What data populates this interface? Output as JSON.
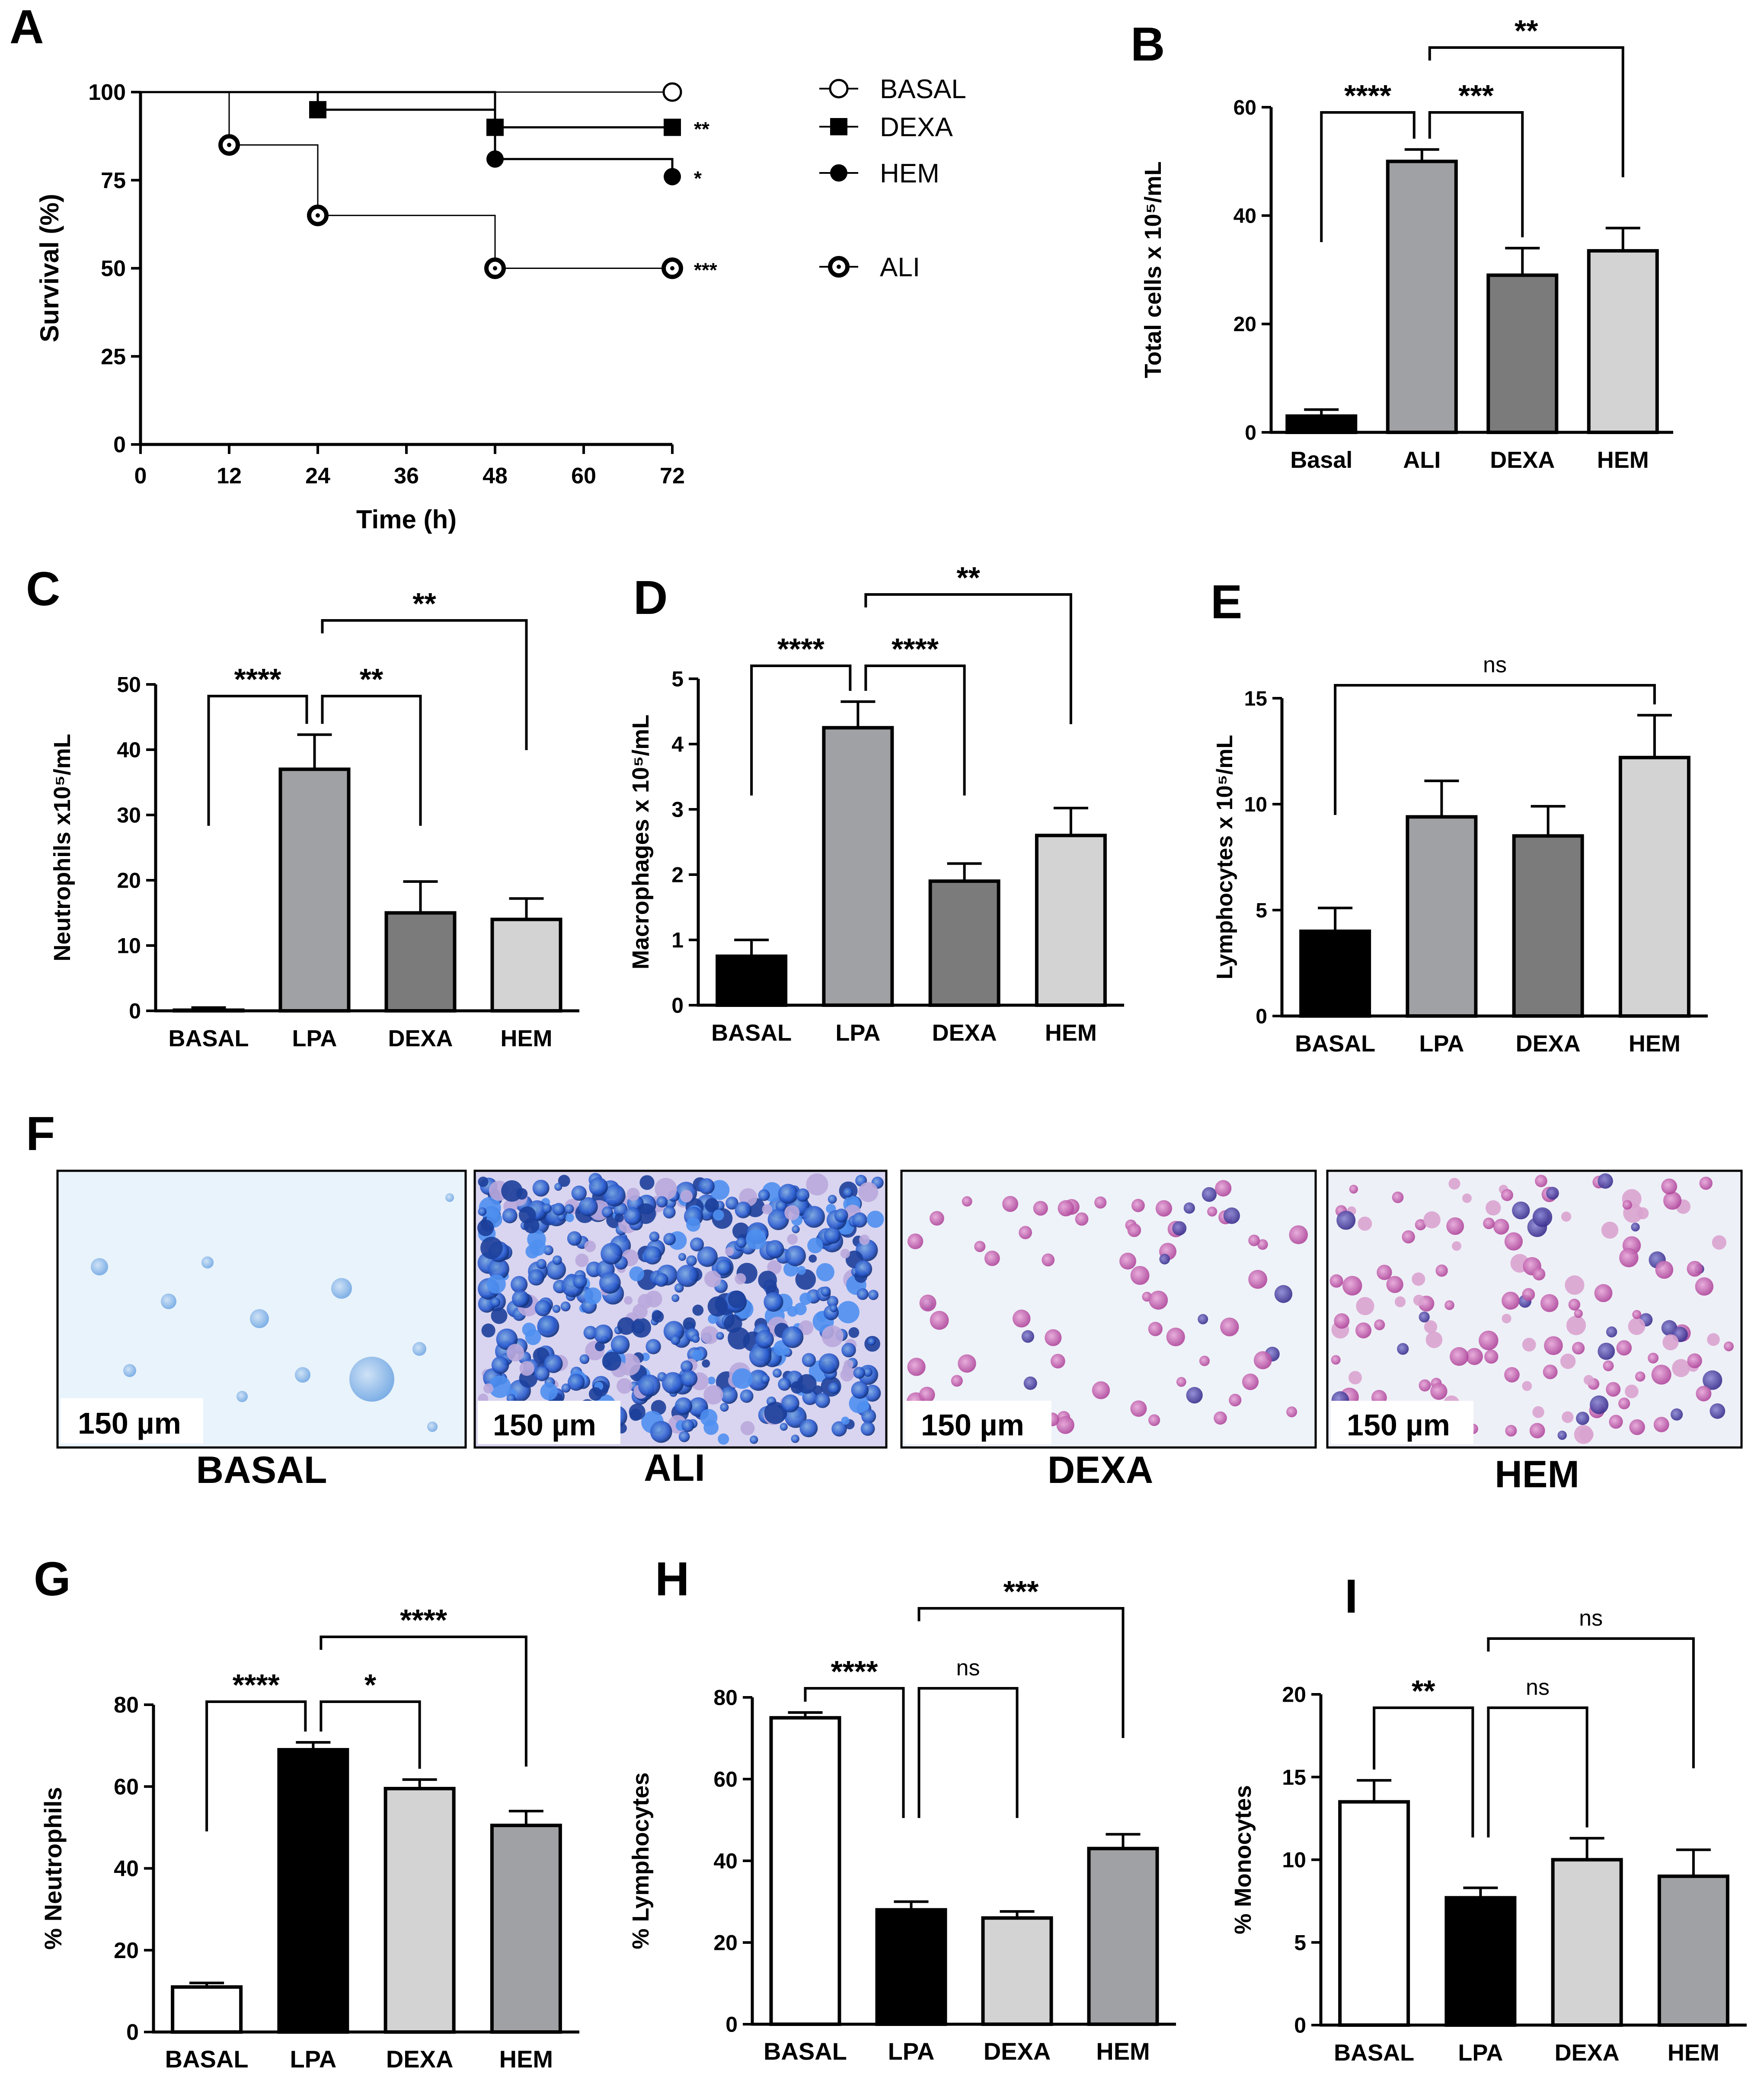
{
  "colors": {
    "black": "#000000",
    "gray_light": "#d3d3d3",
    "gray_mid": "#a0a1a4",
    "gray_dark": "#7b7b7b",
    "white": "#ffffff"
  },
  "chart_data": [
    {
      "id": "A",
      "type": "line",
      "panel_label": "A",
      "title": "",
      "xlabel": "Time (h)",
      "ylabel": "Survival (%)",
      "xlim": [
        0,
        72
      ],
      "ylim": [
        0,
        100
      ],
      "x_ticks": [
        "0",
        "12",
        "24",
        "36",
        "48",
        "60",
        "72"
      ],
      "y_ticks": [
        "0",
        "25",
        "50",
        "75",
        "100"
      ],
      "series": [
        {
          "name": "BASAL",
          "marker": "circle-open",
          "x": [
            0,
            72
          ],
          "y": [
            100,
            100
          ],
          "significance": ""
        },
        {
          "name": "DEXA",
          "marker": "square",
          "x": [
            0,
            24,
            48,
            72
          ],
          "y": [
            100,
            95,
            90,
            90
          ],
          "significance": "**"
        },
        {
          "name": "HEM",
          "marker": "circle-filled",
          "x": [
            0,
            48,
            72
          ],
          "y": [
            100,
            81,
            76
          ],
          "significance": "*"
        },
        {
          "name": "ALI",
          "marker": "circle-dot",
          "x": [
            0,
            12,
            24,
            48,
            72
          ],
          "y": [
            100,
            85,
            65,
            50,
            50
          ],
          "significance": "***"
        }
      ]
    },
    {
      "id": "B",
      "type": "bar",
      "panel_label": "B",
      "ylabel": "Total cells x 10⁵/mL",
      "ylim": [
        0,
        60
      ],
      "y_ticks": [
        "0",
        "20",
        "40",
        "60"
      ],
      "categories": [
        "Basal",
        "ALI",
        "DEXA",
        "HEM"
      ],
      "values": [
        3,
        50,
        29,
        33.5
      ],
      "errors": [
        1.2,
        2.2,
        5,
        4.2
      ],
      "fills": [
        "black",
        "gray_mid",
        "gray_dark",
        "gray_light"
      ],
      "brackets": [
        {
          "from": 0,
          "to": 1,
          "label": "****",
          "level": 1
        },
        {
          "from": 1,
          "to": 2,
          "label": "***",
          "level": 1
        },
        {
          "from": 1,
          "to": 3,
          "label": "**",
          "level": 2
        }
      ]
    },
    {
      "id": "C",
      "type": "bar",
      "panel_label": "C",
      "ylabel": "Neutrophils x10⁵/mL",
      "ylim": [
        0,
        50
      ],
      "y_ticks": [
        "0",
        "10",
        "20",
        "30",
        "40",
        "50"
      ],
      "categories": [
        "BASAL",
        "LPA",
        "DEXA",
        "HEM"
      ],
      "values": [
        0.1,
        37,
        15,
        14
      ],
      "errors": [
        0.4,
        5.3,
        4.8,
        3.2
      ],
      "fills": [
        "black",
        "gray_mid",
        "gray_dark",
        "gray_light"
      ],
      "brackets": [
        {
          "from": 0,
          "to": 1,
          "label": "****",
          "level": 1
        },
        {
          "from": 1,
          "to": 2,
          "label": "**",
          "level": 1
        },
        {
          "from": 1,
          "to": 3,
          "label": "**",
          "level": 2
        }
      ]
    },
    {
      "id": "D",
      "type": "bar",
      "panel_label": "D",
      "ylabel": "Macrophages x 10⁵/mL",
      "ylim": [
        0,
        5
      ],
      "y_ticks": [
        "0",
        "1",
        "2",
        "3",
        "4",
        "5"
      ],
      "categories": [
        "BASAL",
        "LPA",
        "DEXA",
        "HEM"
      ],
      "values": [
        0.75,
        4.25,
        1.9,
        2.6
      ],
      "errors": [
        0.25,
        0.4,
        0.27,
        0.42
      ],
      "fills": [
        "black",
        "gray_mid",
        "gray_dark",
        "gray_light"
      ],
      "brackets": [
        {
          "from": 0,
          "to": 1,
          "label": "****",
          "level": 1
        },
        {
          "from": 1,
          "to": 2,
          "label": "****",
          "level": 1
        },
        {
          "from": 1,
          "to": 3,
          "label": "**",
          "level": 2
        }
      ]
    },
    {
      "id": "E",
      "type": "bar",
      "panel_label": "E",
      "ylabel": "Lymphocytes x 10⁵/mL",
      "ylim": [
        0,
        15
      ],
      "y_ticks": [
        "0",
        "5",
        "10",
        "15"
      ],
      "categories": [
        "BASAL",
        "LPA",
        "DEXA",
        "HEM"
      ],
      "values": [
        4,
        9.4,
        8.5,
        12.2
      ],
      "errors": [
        1.1,
        1.7,
        1.4,
        2
      ],
      "fills": [
        "black",
        "gray_mid",
        "gray_dark",
        "gray_light"
      ],
      "brackets": [
        {
          "from": 0,
          "to": 3,
          "label": "ns",
          "level": 1
        }
      ]
    },
    {
      "id": "G",
      "type": "bar",
      "panel_label": "G",
      "ylabel": "% Neutrophils",
      "ylim": [
        0,
        80
      ],
      "y_ticks": [
        "0",
        "20",
        "40",
        "60",
        "80"
      ],
      "categories": [
        "BASAL",
        "LPA",
        "DEXA",
        "HEM"
      ],
      "values": [
        11,
        69,
        59.5,
        50.5
      ],
      "errors": [
        1,
        1.8,
        2.2,
        3.5
      ],
      "fills": [
        "white",
        "black",
        "gray_light",
        "gray_mid"
      ],
      "brackets": [
        {
          "from": 0,
          "to": 1,
          "label": "****",
          "level": 1
        },
        {
          "from": 1,
          "to": 2,
          "label": "*",
          "level": 1
        },
        {
          "from": 1,
          "to": 3,
          "label": "****",
          "level": 2
        }
      ]
    },
    {
      "id": "H",
      "type": "bar",
      "panel_label": "H",
      "ylabel": "% Lymphocytes",
      "ylim": [
        0,
        80
      ],
      "y_ticks": [
        "0",
        "20",
        "40",
        "60",
        "80"
      ],
      "categories": [
        "BASAL",
        "LPA",
        "DEXA",
        "HEM"
      ],
      "values": [
        75,
        28,
        26,
        43
      ],
      "errors": [
        1.3,
        2,
        1.6,
        3.5
      ],
      "fills": [
        "white",
        "black",
        "gray_light",
        "gray_mid"
      ],
      "brackets": [
        {
          "from": 0,
          "to": 1,
          "label": "****",
          "level": 1
        },
        {
          "from": 1,
          "to": 2,
          "label": "ns",
          "level": 1
        },
        {
          "from": 1,
          "to": 3,
          "label": "***",
          "level": 2
        }
      ]
    },
    {
      "id": "I",
      "type": "bar",
      "panel_label": "I",
      "ylabel": "% Monocytes",
      "ylim": [
        0,
        20
      ],
      "y_ticks": [
        "0",
        "5",
        "10",
        "15",
        "20"
      ],
      "categories": [
        "BASAL",
        "LPA",
        "DEXA",
        "HEM"
      ],
      "values": [
        13.5,
        7.7,
        10,
        9
      ],
      "errors": [
        1.3,
        0.6,
        1.3,
        1.6
      ],
      "fills": [
        "white",
        "black",
        "gray_light",
        "gray_mid"
      ],
      "brackets": [
        {
          "from": 0,
          "to": 1,
          "label": "**",
          "level": 1
        },
        {
          "from": 1,
          "to": 2,
          "label": "ns",
          "level": 1
        },
        {
          "from": 1,
          "to": 3,
          "label": "ns",
          "level": 2
        }
      ]
    }
  ],
  "panel_f": {
    "label": "F",
    "images": [
      {
        "name": "basal",
        "caption": "BASAL",
        "scale_bar": "150 µm",
        "stain": "sparse-blue"
      },
      {
        "name": "ali",
        "caption": "ALI",
        "scale_bar": "150 µm",
        "stain": "dense-blue"
      },
      {
        "name": "dexa",
        "caption": "DEXA",
        "scale_bar": "150 µm",
        "stain": "pink-purple"
      },
      {
        "name": "hem",
        "caption": "HEM",
        "scale_bar": "150 µm",
        "stain": "pink-purple-dense"
      }
    ]
  }
}
